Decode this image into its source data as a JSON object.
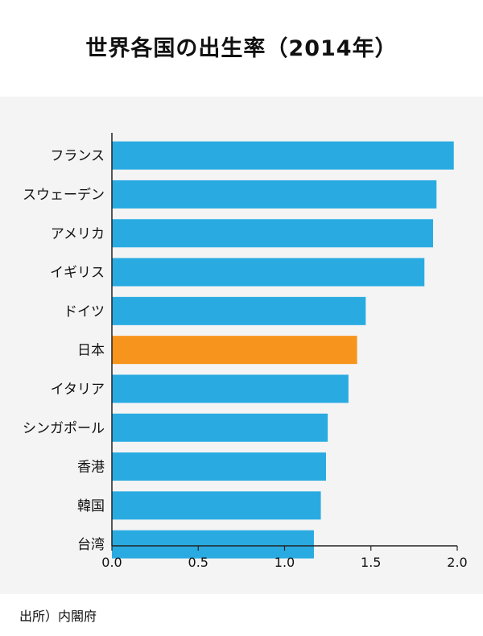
{
  "title": "世界各国の出生率（2014年）",
  "source": "出所）内閣府",
  "colors": {
    "bar": "#29abe2",
    "highlight": "#f7941d",
    "axis": "#222222",
    "panel": "#f4f4f4"
  },
  "chart_data": {
    "type": "bar",
    "orientation": "horizontal",
    "title": "世界各国の出生率（2014年）",
    "categories": [
      "フランス",
      "スウェーデン",
      "アメリカ",
      "イギリス",
      "ドイツ",
      "日本",
      "イタリア",
      "シンガポール",
      "香港",
      "韓国",
      "台湾"
    ],
    "values": [
      1.98,
      1.88,
      1.86,
      1.81,
      1.47,
      1.42,
      1.37,
      1.25,
      1.24,
      1.21,
      1.17
    ],
    "highlight": "日本",
    "xlim": [
      0,
      2.0
    ],
    "xticks": [
      "0.0",
      "0.5",
      "1.0",
      "1.5",
      "2.0"
    ],
    "grid": false,
    "legend": "none"
  }
}
